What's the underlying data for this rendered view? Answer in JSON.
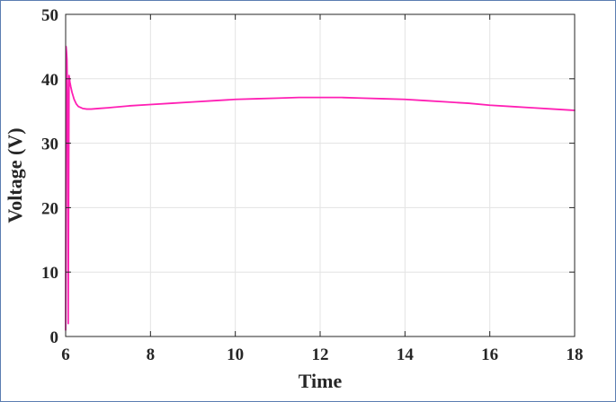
{
  "chart_data": {
    "type": "line",
    "title": "",
    "xlabel": "Time",
    "ylabel": "Voltage (V)",
    "xlim": [
      6,
      18
    ],
    "ylim": [
      0,
      50
    ],
    "xticks": [
      6,
      8,
      10,
      12,
      14,
      16,
      18
    ],
    "yticks": [
      0,
      10,
      20,
      30,
      40,
      50
    ],
    "grid": true,
    "legend": "none",
    "series": [
      {
        "color": "#ff1fb4",
        "x": [
          6.0,
          6.01,
          6.02,
          6.03,
          6.04,
          6.05,
          6.06,
          6.08,
          6.1,
          6.12,
          6.15,
          6.2,
          6.25,
          6.3,
          6.4,
          6.5,
          6.6,
          6.8,
          7.0,
          7.5,
          8.0,
          8.5,
          9.0,
          9.5,
          10.0,
          10.5,
          11.0,
          11.5,
          12.0,
          12.5,
          13.0,
          13.5,
          14.0,
          14.5,
          15.0,
          15.5,
          16.0,
          16.5,
          17.0,
          17.5,
          18.0
        ],
        "y": [
          1.0,
          45.0,
          44.2,
          43.0,
          38.0,
          20.0,
          2.0,
          40.5,
          39.5,
          38.8,
          37.9,
          36.8,
          36.1,
          35.7,
          35.4,
          35.3,
          35.3,
          35.4,
          35.5,
          35.8,
          36.0,
          36.2,
          36.4,
          36.6,
          36.8,
          36.9,
          37.0,
          37.1,
          37.1,
          37.1,
          37.0,
          36.9,
          36.8,
          36.6,
          36.4,
          36.2,
          35.9,
          35.7,
          35.5,
          35.3,
          35.1
        ]
      }
    ]
  }
}
